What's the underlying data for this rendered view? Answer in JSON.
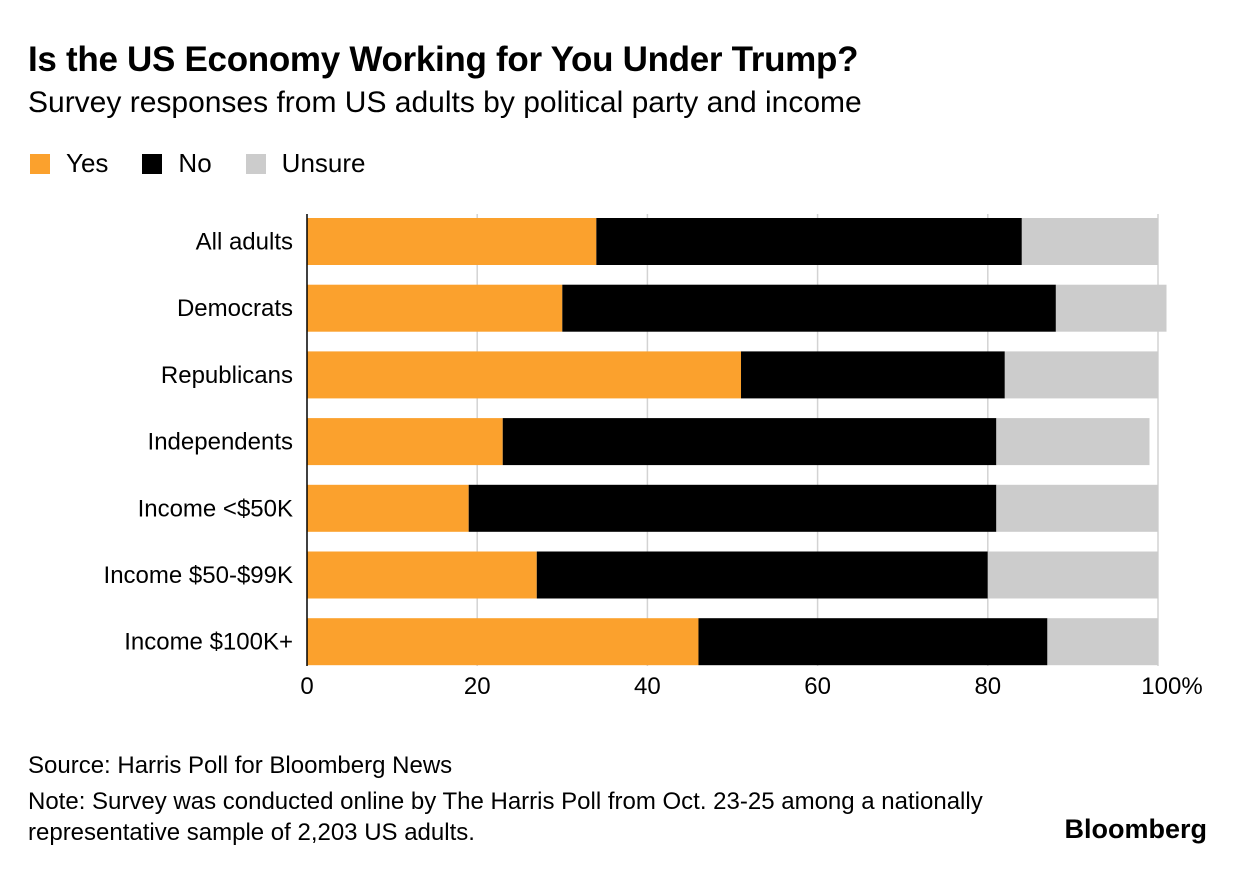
{
  "header": {
    "title": "Is the US Economy Working for You Under Trump?",
    "subtitle": "Survey responses from US adults by political party and income"
  },
  "legend": [
    {
      "label": "Yes",
      "color": "#fba12d"
    },
    {
      "label": "No",
      "color": "#000000"
    },
    {
      "label": "Unsure",
      "color": "#cccccc"
    }
  ],
  "chart_data": {
    "type": "bar",
    "orientation": "horizontal",
    "stacked": true,
    "title": "Is the US Economy Working for You Under Trump?",
    "subtitle": "Survey responses from US adults by political party and income",
    "categories": [
      "All adults",
      "Democrats",
      "Republicans",
      "Independents",
      "Income <$50K",
      "Income $50-$99K",
      "Income $100K+"
    ],
    "series": [
      {
        "name": "Yes",
        "color": "#fba12d",
        "values": [
          34,
          30,
          51,
          23,
          19,
          27,
          46
        ]
      },
      {
        "name": "No",
        "color": "#000000",
        "values": [
          50,
          58,
          31,
          58,
          62,
          53,
          41
        ]
      },
      {
        "name": "Unsure",
        "color": "#cccccc",
        "values": [
          16,
          13,
          18,
          18,
          19,
          20,
          13
        ]
      }
    ],
    "xticks": [
      "0",
      "20",
      "40",
      "60",
      "80",
      "100%"
    ],
    "xtick_values": [
      0,
      20,
      40,
      60,
      80,
      100
    ],
    "xlim": [
      0,
      100
    ],
    "grid": true,
    "legend_position": "top-left"
  },
  "footer": {
    "source": "Source: Harris Poll for Bloomberg News",
    "note": "Note: Survey was conducted online by The Harris Poll from Oct. 23-25 among a nationally representative sample of 2,203 US adults.",
    "brand": "Bloomberg"
  }
}
